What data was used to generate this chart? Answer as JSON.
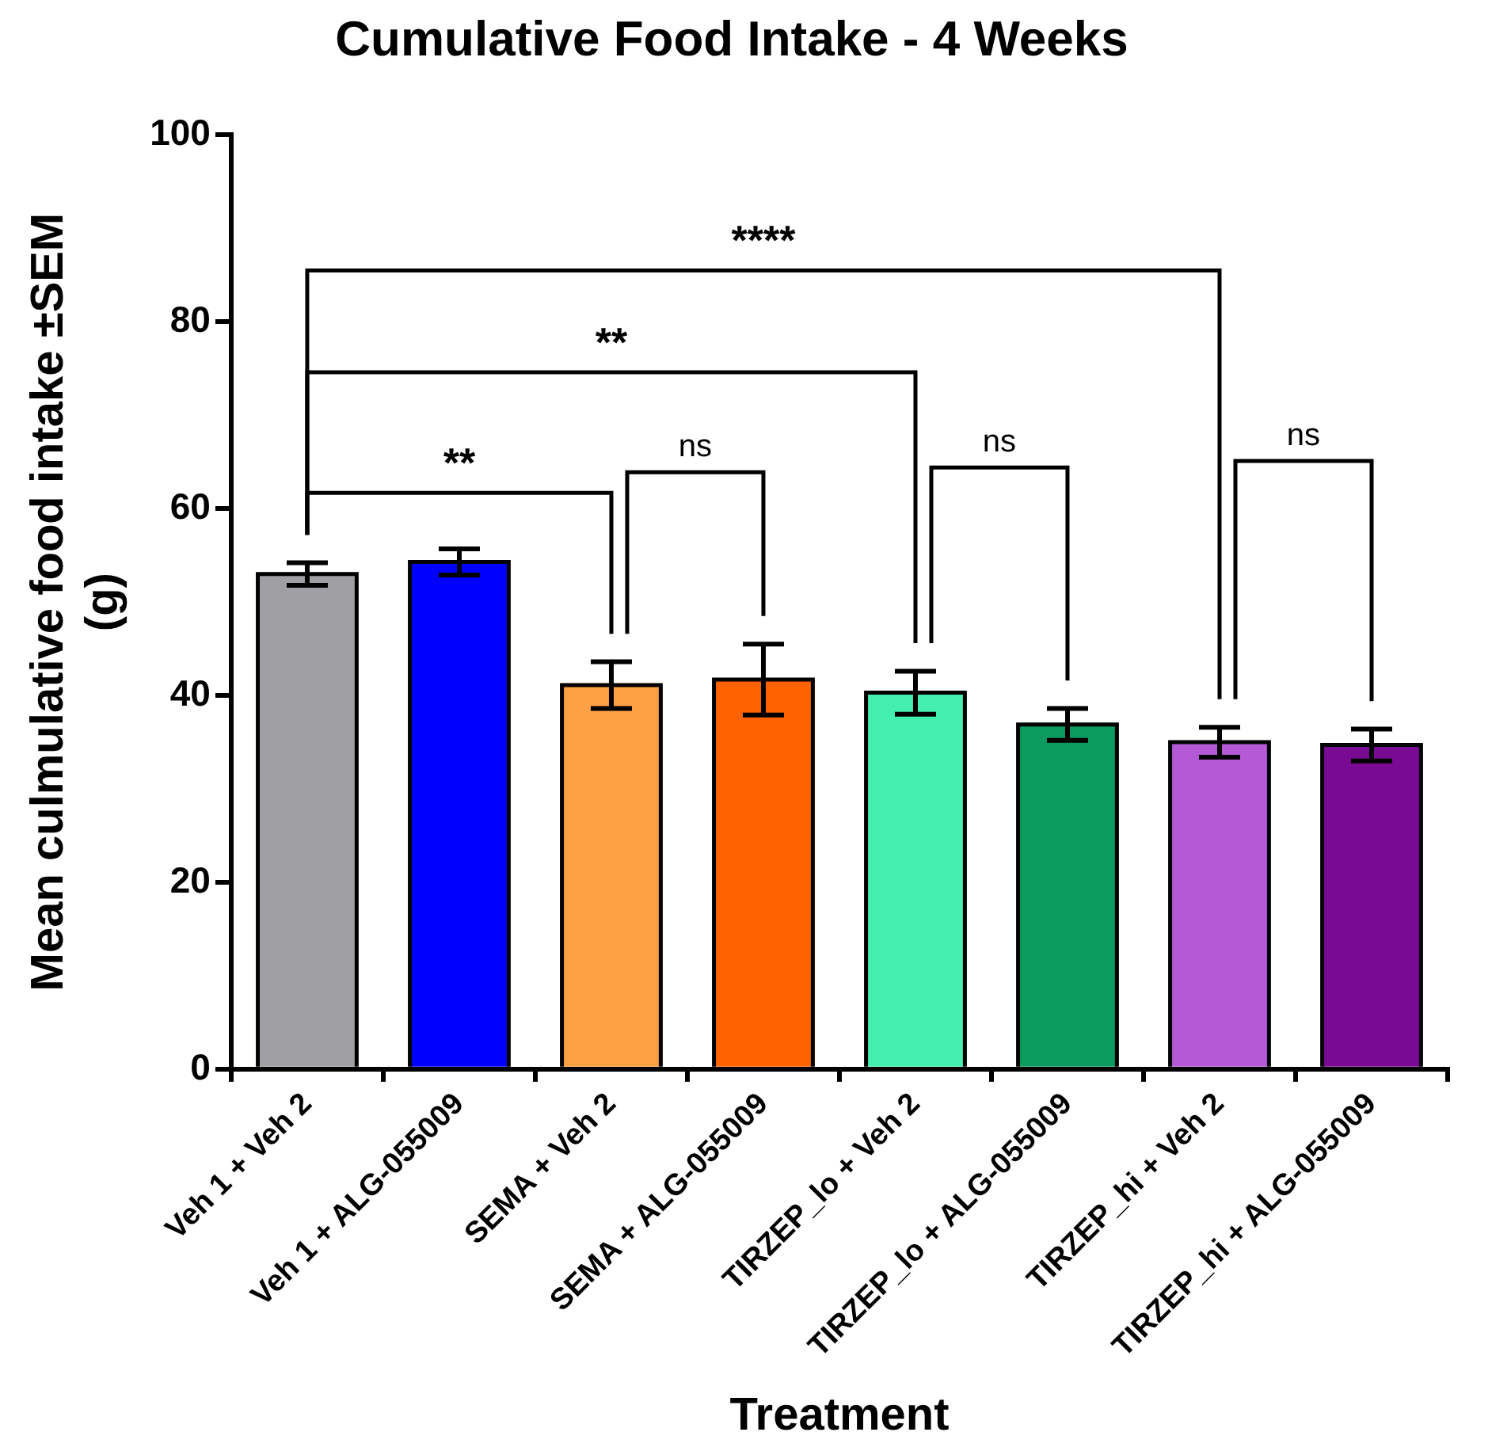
{
  "chart_data": {
    "type": "bar",
    "title": "Cumulative Food Intake - 4 Weeks",
    "xlabel": "Treatment",
    "ylabel": "Mean culmulative food intake ±SEM\n(g)",
    "categories": [
      "Veh 1 + Veh 2",
      "Veh 1 + ALG-055009",
      "SEMA + Veh 2",
      "SEMA + ALG-055009",
      "TIRZEP_lo + Veh 2",
      "TIRZEP_lo + ALG-055009",
      "TIRZEP_hi + Veh 2",
      "TIRZEP_hi + ALG-055009"
    ],
    "values": [
      53.0,
      54.3,
      41.1,
      41.7,
      40.3,
      36.9,
      35.0,
      34.7
    ],
    "errors": [
      1.2,
      1.4,
      2.5,
      3.8,
      2.3,
      1.7,
      1.6,
      1.7
    ],
    "colors": [
      "#a09fa4",
      "#0000ff",
      "#fda045",
      "#ff6200",
      "#44eeaf",
      "#0d9a5f",
      "#b559d7",
      "#790a93"
    ],
    "ylim": [
      0,
      100
    ],
    "yticks": [
      0,
      20,
      40,
      60,
      80,
      100
    ],
    "annotations": [
      "**",
      "ns",
      "**",
      "ns",
      "****",
      "ns"
    ]
  }
}
